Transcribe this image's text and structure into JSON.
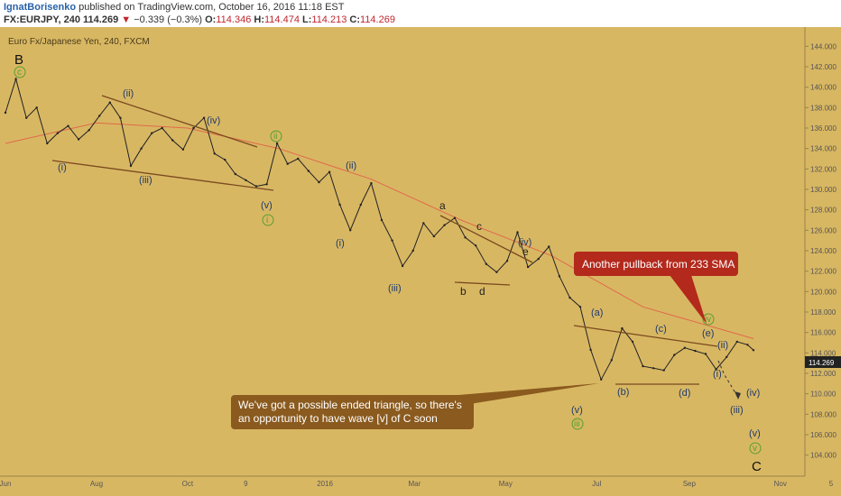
{
  "header": {
    "author": "IgnatBorisenko",
    "published": "published on TradingView.com, October 16, 2016 11:18 EST",
    "symbol": "FX:EURJPY, 240",
    "last": "114.269",
    "arrow": "▼",
    "change": "−0.339 (−0.3%)",
    "o_label": "O:",
    "o_value": "114.346",
    "h_label": "H:",
    "h_value": "114.474",
    "l_label": "L:",
    "l_value": "114.213",
    "c_label": "C:",
    "c_value": "114.269"
  },
  "chart_title": "Euro Fx/Japanese Yen, 240, FXCM",
  "colors": {
    "background": "#d8b763",
    "price": "#222222",
    "sma": "#e06a4a",
    "trendline": "#7a4a1e",
    "callout_red": "#b3291c",
    "callout_brown": "#8a5a1e",
    "wave_blue": "#1f3a6b",
    "wave_green": "#5a9e2f",
    "price_tag": "#222222"
  },
  "annotations": {
    "sma_callout": "Another pullback from 233 SMA",
    "triangle_callout_line1": "We've got a possible ended triangle, so there's",
    "triangle_callout_line2": "an opportunity to have wave [v] of C soon"
  },
  "wave_labels": {
    "B": "B",
    "c": "c",
    "ii": "(ii)",
    "iv": "(iv)",
    "i": "(i)",
    "iii": "(iii)",
    "v": "(v)",
    "green_ii": "ii",
    "green_i": "i",
    "ii_b": "(ii)",
    "i_b": "(i)",
    "iii_b": "(iii)",
    "a": "a",
    "c2": "c",
    "b": "b",
    "d": "d",
    "e": "e",
    "iv_b": "(iv)",
    "v_b": "(v)",
    "green_iii": "iii",
    "wa": "(a)",
    "wb": "(b)",
    "wc": "(c)",
    "wd": "(d)",
    "we": "(e)",
    "green_iv": "iv",
    "f_ii": "(ii)",
    "f_i": "(i)",
    "f_iii": "(iii)",
    "f_iv": "(iv)",
    "f_v": "(v)",
    "green_v": "v",
    "C": "C"
  },
  "chart_data": {
    "type": "line",
    "symbol": "EURJPY",
    "timeframe": "240",
    "series": [
      {
        "name": "",
        "x": [
          "2015-06-01",
          "2015-06-08",
          "2015-06-15",
          "2015-06-22",
          "2015-06-29",
          "2015-07-06",
          "2015-07-13",
          "2015-07-20",
          "2015-07-27",
          "2015-08-03",
          "2015-08-10",
          "2015-08-17",
          "2015-08-24",
          "2015-08-31",
          "2015-09-07",
          "2015-09-14",
          "2015-09-21",
          "2015-09-28",
          "2015-10-05",
          "2015-10-12",
          "2015-10-19",
          "2015-10-26",
          "2015-11-02",
          "2015-11-09",
          "2015-11-16",
          "2015-11-23",
          "2015-11-30",
          "2015-12-07",
          "2015-12-14",
          "2015-12-21",
          "2015-12-28",
          "2016-01-04",
          "2016-01-11",
          "2016-01-18",
          "2016-01-25",
          "2016-02-01",
          "2016-02-08",
          "2016-02-15",
          "2016-02-22",
          "2016-02-29",
          "2016-03-07",
          "2016-03-14",
          "2016-03-21",
          "2016-03-28",
          "2016-04-04",
          "2016-04-11",
          "2016-04-18",
          "2016-04-25",
          "2016-05-02",
          "2016-05-09",
          "2016-05-16",
          "2016-05-23",
          "2016-05-30",
          "2016-06-06",
          "2016-06-13",
          "2016-06-20",
          "2016-06-27",
          "2016-07-04",
          "2016-07-11",
          "2016-07-18",
          "2016-07-25",
          "2016-08-01",
          "2016-08-08",
          "2016-08-15",
          "2016-08-22",
          "2016-08-29",
          "2016-09-05",
          "2016-09-12",
          "2016-09-19",
          "2016-09-26",
          "2016-10-03",
          "2016-10-10",
          "2016-10-14"
        ],
        "values": [
          137.5,
          140.8,
          137.0,
          138.0,
          134.5,
          135.5,
          136.2,
          134.9,
          135.8,
          137.2,
          138.5,
          137.0,
          132.3,
          134.0,
          135.5,
          136.0,
          134.8,
          133.9,
          136.0,
          137.0,
          133.5,
          132.9,
          131.5,
          130.9,
          130.3,
          130.5,
          134.5,
          132.5,
          133.0,
          131.8,
          130.7,
          131.7,
          128.5,
          126.0,
          128.5,
          130.6,
          127.0,
          125.0,
          122.5,
          124.0,
          126.7,
          125.4,
          126.5,
          127.2,
          125.3,
          124.5,
          122.7,
          121.9,
          123.0,
          125.8,
          122.4,
          123.2,
          124.4,
          121.5,
          119.4,
          118.5,
          114.3,
          111.4,
          113.3,
          116.4,
          115.1,
          112.7,
          112.5,
          112.3,
          113.8,
          114.5,
          114.2,
          113.9,
          112.4,
          113.6,
          115.1,
          114.8,
          114.269
        ]
      },
      {
        "name": "233 SMA",
        "x": [
          "2015-06-01",
          "2015-08-01",
          "2015-10-01",
          "2015-12-01",
          "2016-02-01",
          "2016-04-01",
          "2016-06-01",
          "2016-08-01",
          "2016-10-14"
        ],
        "values": [
          134.5,
          136.5,
          136.0,
          134.0,
          131.0,
          127.0,
          123.5,
          118.5,
          115.4
        ]
      }
    ],
    "y_axis": {
      "min": 103,
      "max": 145,
      "ticks": [
        104,
        106,
        108,
        110,
        112,
        114,
        116,
        118,
        120,
        122,
        124,
        126,
        128,
        130,
        132,
        134,
        136,
        138,
        140,
        142,
        144
      ],
      "position": "right"
    },
    "x_axis": {
      "min": "2015-06-01",
      "max": "2016-11-09",
      "ticks": [
        {
          "label": "Jun",
          "date": "2015-06-01"
        },
        {
          "label": "Aug",
          "date": "2015-08-01"
        },
        {
          "label": "Oct",
          "date": "2015-10-01"
        },
        {
          "label": "9",
          "date": "2015-11-09"
        },
        {
          "label": "2016",
          "date": "2016-01-01"
        },
        {
          "label": "Mar",
          "date": "2016-03-01"
        },
        {
          "label": "May",
          "date": "2016-05-01"
        },
        {
          "label": "Jul",
          "date": "2016-07-01"
        },
        {
          "label": "Sep",
          "date": "2016-09-01"
        },
        {
          "label": "Nov",
          "date": "2016-11-01"
        },
        {
          "label": "5",
          "date": "2016-12-05"
        }
      ]
    },
    "last_price": 114.269,
    "grid": false,
    "legend": "none"
  }
}
